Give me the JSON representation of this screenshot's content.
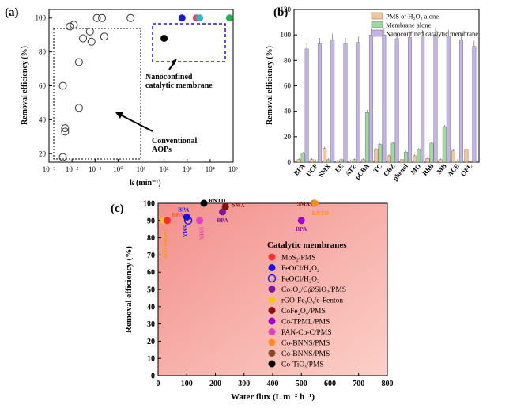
{
  "panels": {
    "a": {
      "label": "(a)"
    },
    "b": {
      "label": "(b)"
    },
    "c": {
      "label": "(c)"
    }
  },
  "chart_data": [
    {
      "id": "a",
      "type": "scatter",
      "xlabel": "k (min⁻¹)",
      "ylabel": "Removal efficiency (%)",
      "xscale": "log",
      "xlim": [
        0.001,
        100000
      ],
      "ylim": [
        15,
        105
      ],
      "xticks": [
        "10⁻³",
        "10⁻²",
        "10⁻¹",
        "10⁰",
        "10¹",
        "10²",
        "10³",
        "10⁴",
        "10⁵"
      ],
      "yticks": [
        20,
        40,
        60,
        80,
        100
      ],
      "annotations": [
        "Nanoconfined",
        "catalytic membrane",
        "Conventional",
        "AOPs"
      ],
      "series": [
        {
          "group": "conventional",
          "marker": "open-circle",
          "points": [
            {
              "x": 0.004,
              "y": 18
            },
            {
              "x": 0.005,
              "y": 33
            },
            {
              "x": 0.005,
              "y": 35
            },
            {
              "x": 0.004,
              "y": 60
            },
            {
              "x": 0.008,
              "y": 95
            },
            {
              "x": 0.012,
              "y": 96
            },
            {
              "x": 0.02,
              "y": 74
            },
            {
              "x": 0.02,
              "y": 47
            },
            {
              "x": 0.03,
              "y": 88
            },
            {
              "x": 0.06,
              "y": 92
            },
            {
              "x": 0.07,
              "y": 86
            },
            {
              "x": 0.12,
              "y": 100
            },
            {
              "x": 0.2,
              "y": 100
            },
            {
              "x": 0.25,
              "y": 89
            },
            {
              "x": 3.5,
              "y": 100
            }
          ]
        },
        {
          "group": "nanoconfined",
          "marker": "filled-circle",
          "points": [
            {
              "x": 100,
              "y": 88,
              "color": "#000000"
            },
            {
              "x": 600,
              "y": 100,
              "color": "#1a1ad6"
            },
            {
              "x": 2500,
              "y": 100,
              "color": "#e8446a"
            },
            {
              "x": 3500,
              "y": 100,
              "color": "#2fb7c6"
            },
            {
              "x": 70000,
              "y": 100,
              "color": "#22b14c"
            }
          ]
        }
      ]
    },
    {
      "id": "b",
      "type": "bar",
      "ylabel": "Removal efficiency (%)",
      "ylim": [
        0,
        120
      ],
      "yticks": [
        0,
        20,
        40,
        60,
        80,
        100,
        120
      ],
      "categories": [
        "BPA",
        "DCP",
        "SMX",
        "EE",
        "ATZ",
        "pCBA",
        "TC",
        "CBZ",
        "phenol",
        "MO",
        "RhB",
        "MB",
        "ACE",
        "OFL"
      ],
      "series": [
        {
          "name": "PMS or H₂O₂ alone",
          "color": "#f6c59a",
          "values": [
            2,
            2,
            11,
            1,
            1,
            2,
            10,
            5,
            2,
            5,
            3,
            2,
            9,
            10
          ]
        },
        {
          "name": "Membrane alone",
          "color": "#9ed9a0",
          "values": [
            7,
            1,
            2,
            2,
            2,
            39,
            14,
            15,
            8,
            10,
            15,
            28,
            1,
            0
          ]
        },
        {
          "name": "Nanoconfined catalytic membrane",
          "color": "#c3b3e6",
          "values": [
            89,
            93,
            96,
            93,
            94,
            100,
            100,
            97,
            98,
            99,
            100,
            99,
            96,
            91
          ]
        }
      ],
      "legend": "top-right"
    },
    {
      "id": "c",
      "type": "scatter",
      "xlabel": "Water flux (L m⁻² h⁻¹)",
      "ylabel": "Removal efficiency (%)",
      "xlim": [
        0,
        800
      ],
      "ylim": [
        0,
        100
      ],
      "xticks": [
        0,
        100,
        200,
        300,
        400,
        500,
        600,
        700,
        800
      ],
      "yticks": [
        0,
        10,
        20,
        30,
        40,
        50,
        60,
        70,
        80,
        90,
        100
      ],
      "legend_title": "Catalytic membranes",
      "legend": [
        {
          "label": "MoS₂/PMS",
          "color": "#ff2d2d",
          "open": false
        },
        {
          "label": "FeOCl/H₂O₂",
          "color": "#1515e0",
          "open": false
        },
        {
          "label": "FeOCl/H₂O₂",
          "color": "#1515e0",
          "open": true
        },
        {
          "label": "Co₃O₄/C@SiO₂/PMS",
          "color": "#7a1a9a",
          "open": false
        },
        {
          "label": "rGO-FeₓOᵧ/e-Fenton",
          "color": "#f0c419",
          "open": false
        },
        {
          "label": "CoFe₂O₄/PMS",
          "color": "#8a1010",
          "open": false
        },
        {
          "label": "Co-TPML/PMS",
          "color": "#a000d0",
          "open": false
        },
        {
          "label": "PAN-Co-C/PMS",
          "color": "#e040c0",
          "open": false
        },
        {
          "label": "Co-BNNS/PMS",
          "color": "#ff8c1a",
          "open": false
        },
        {
          "label": "Co-BNNS/PMS",
          "color": "#8a4a20",
          "open": false
        },
        {
          "label": "Co-TiOₓ/PMS",
          "color": "#000000",
          "open": false
        }
      ],
      "points": [
        {
          "x": 20,
          "y": 90,
          "color": "#f0c419",
          "label": "Fenton-type",
          "labelColor": "#f0a000"
        },
        {
          "x": 32,
          "y": 90,
          "color": "#ff2d2d",
          "label": "BPA",
          "labelColor": "#ff5a1a"
        },
        {
          "x": 100,
          "y": 92,
          "color": "#1515e0",
          "label": "BPA",
          "labelColor": "#1515e0"
        },
        {
          "x": 105,
          "y": 90,
          "color": "#1515e0",
          "open": true,
          "label": "SMX",
          "labelColor": "#1515e0"
        },
        {
          "x": 145,
          "y": 90,
          "color": "#e040c0",
          "label": "SMX",
          "labelColor": "#e040c0"
        },
        {
          "x": 160,
          "y": 100,
          "color": "#000000",
          "label": "RNTD",
          "labelColor": "#000000"
        },
        {
          "x": 225,
          "y": 95,
          "color": "#7a1a9a",
          "label": "BPA",
          "labelColor": "#7a1a9a"
        },
        {
          "x": 235,
          "y": 98,
          "color": "#8a1010",
          "label": "SMX",
          "labelColor": "#8a1010"
        },
        {
          "x": 500,
          "y": 90,
          "color": "#a000d0",
          "label": "BPA",
          "labelColor": "#a000d0"
        },
        {
          "x": 545,
          "y": 100,
          "color": "#8a4a20",
          "label": "SMX",
          "labelColor": "#8a1010"
        },
        {
          "x": 548,
          "y": 100,
          "color": "#ff8c1a",
          "label": "RNTD",
          "labelColor": "#ff8c1a"
        }
      ]
    }
  ]
}
